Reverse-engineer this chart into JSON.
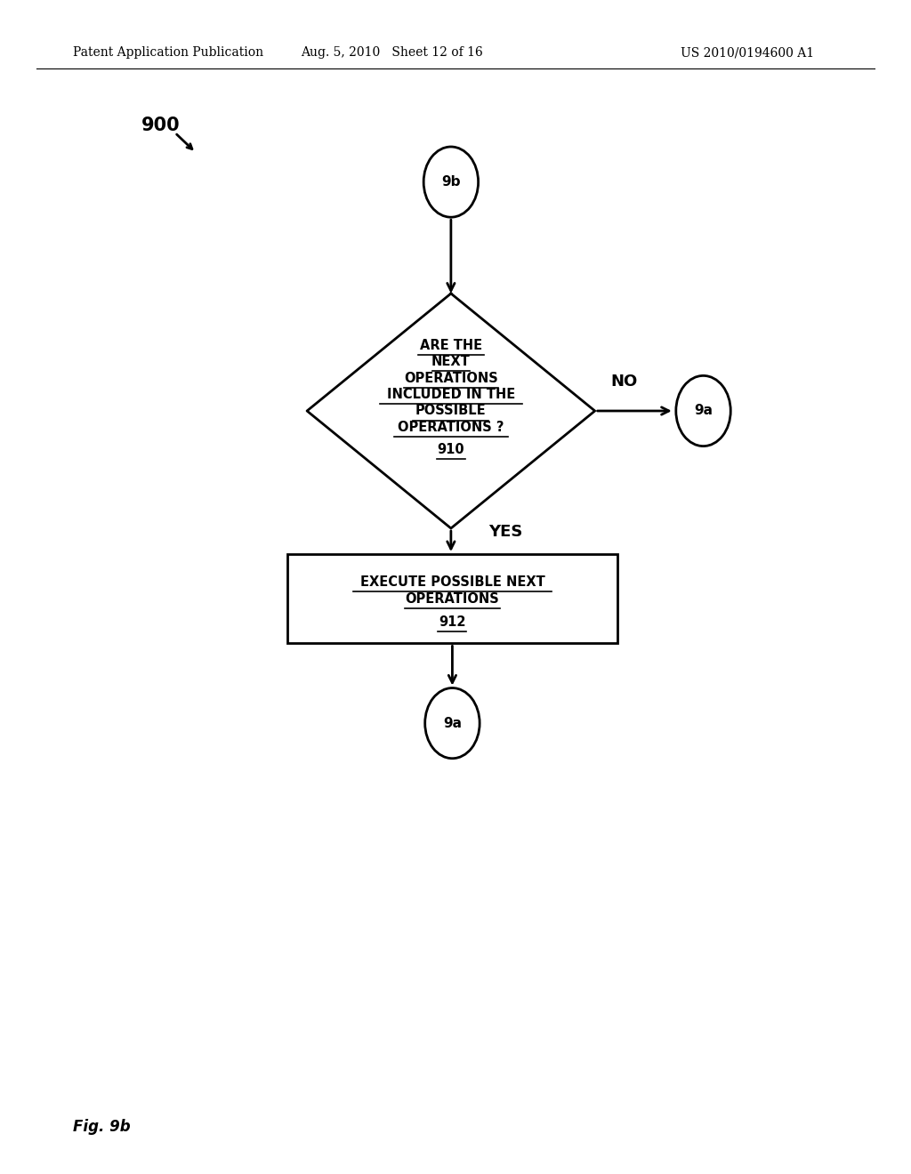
{
  "header_left": "Patent Application Publication",
  "header_mid": "Aug. 5, 2010   Sheet 12 of 16",
  "header_right": "US 2010/0194600 A1",
  "fig_label": "Fig. 9b",
  "label_900": "900",
  "background_color": "#ffffff",
  "node_9b_label": "9b",
  "node_9a_right_label": "9a",
  "node_9a_bottom_label": "9a",
  "diamond_lines": [
    "ARE THE",
    "NEXT",
    "OPERATIONS",
    "INCLUDED IN THE",
    "POSSIBLE",
    "OPERATIONS ?",
    "910"
  ],
  "rect_lines": [
    "EXECUTE POSSIBLE NEXT",
    "OPERATIONS",
    "912"
  ],
  "no_label": "NO",
  "yes_label": "YES"
}
